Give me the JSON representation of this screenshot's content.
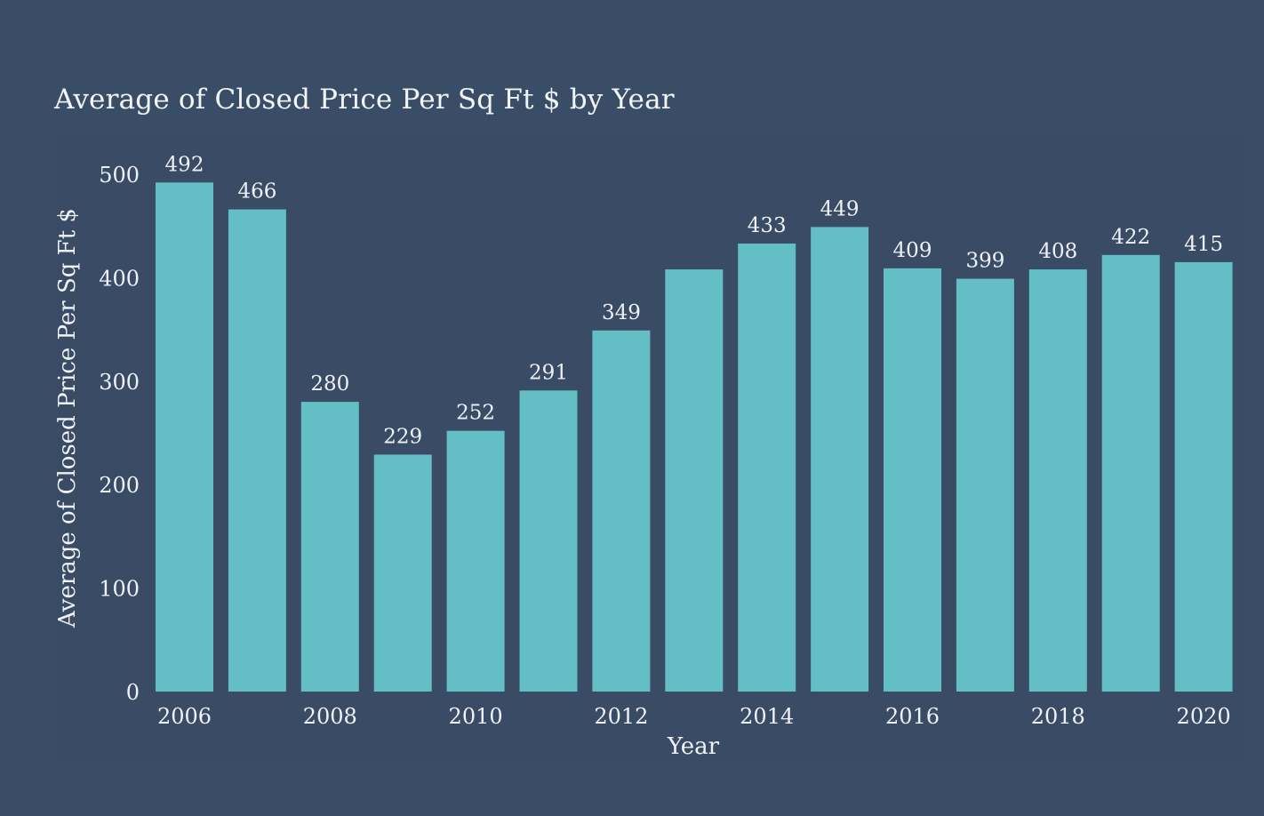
{
  "chart_data": {
    "type": "bar",
    "title": "Average of Closed Price Per Sq Ft $ by Year",
    "xlabel": "Year",
    "ylabel": "Average of Closed Price Per Sq Ft $",
    "categories": [
      "2006",
      "2007",
      "2008",
      "2009",
      "2010",
      "2011",
      "2012",
      "2013",
      "2014",
      "2015",
      "2016",
      "2017",
      "2018",
      "2019",
      "2020"
    ],
    "values": [
      492,
      466,
      280,
      229,
      252,
      291,
      349,
      408,
      433,
      449,
      409,
      399,
      408,
      422,
      415
    ],
    "data_labels": [
      "492",
      "466",
      "280",
      "229",
      "252",
      "291",
      "349",
      "",
      "433",
      "449",
      "409",
      "399",
      "408",
      "422",
      "415"
    ],
    "x_tick_labels": [
      "2006",
      "",
      "2008",
      "",
      "2010",
      "",
      "2012",
      "",
      "2014",
      "",
      "2016",
      "",
      "2018",
      "",
      "2020"
    ],
    "y_ticks": [
      0,
      100,
      200,
      300,
      400,
      500
    ],
    "ylim": [
      0,
      500
    ],
    "grid": false,
    "legend": "none",
    "colors": {
      "background": "#3a4d67",
      "plot_background": "#394b65",
      "bar": "#63bec6",
      "text": "#eef2f6"
    }
  }
}
